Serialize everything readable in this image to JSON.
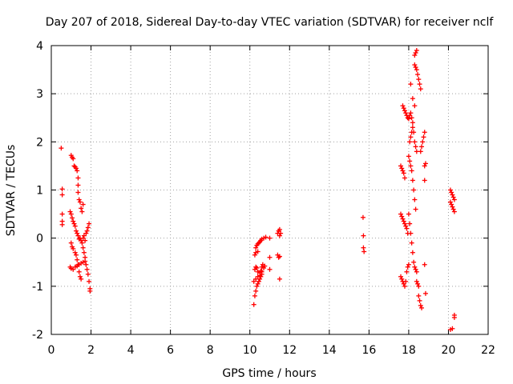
{
  "chart_data": {
    "type": "scatter",
    "title": "Day 207 of 2018, Sidereal Day-to-day VTEC variation (SDTVAR) for receiver nclf",
    "xlabel": "GPS time / hours",
    "ylabel": "SDTVAR / TECUs",
    "xlim": [
      0,
      22
    ],
    "ylim": [
      -2,
      4
    ],
    "xticks": [
      "0",
      "2",
      "4",
      "6",
      "8",
      "10",
      "12",
      "14",
      "16",
      "18",
      "20",
      "22"
    ],
    "yticks": [
      "-2",
      "-1",
      "0",
      "1",
      "2",
      "3",
      "4"
    ],
    "grid": true,
    "marker": "+",
    "color": "#ff0000",
    "series": [
      {
        "name": "SDTVAR",
        "points": [
          [
            0.5,
            1.87
          ],
          [
            0.55,
            1.02
          ],
          [
            0.55,
            0.9
          ],
          [
            0.55,
            0.5
          ],
          [
            0.55,
            0.35
          ],
          [
            0.55,
            0.28
          ],
          [
            1.0,
            1.72
          ],
          [
            1.05,
            1.68
          ],
          [
            1.1,
            1.65
          ],
          [
            1.15,
            1.5
          ],
          [
            1.2,
            1.48
          ],
          [
            1.25,
            1.45
          ],
          [
            1.3,
            1.4
          ],
          [
            1.35,
            1.25
          ],
          [
            1.35,
            1.1
          ],
          [
            1.35,
            0.95
          ],
          [
            1.4,
            0.8
          ],
          [
            1.45,
            0.75
          ],
          [
            1.5,
            0.62
          ],
          [
            1.55,
            0.55
          ],
          [
            1.6,
            0.7
          ],
          [
            0.95,
            0.55
          ],
          [
            1.0,
            0.5
          ],
          [
            1.05,
            0.42
          ],
          [
            1.1,
            0.35
          ],
          [
            1.15,
            0.3
          ],
          [
            1.2,
            0.25
          ],
          [
            1.25,
            0.15
          ],
          [
            1.3,
            0.1
          ],
          [
            1.35,
            0.05
          ],
          [
            1.4,
            -0.02
          ],
          [
            1.0,
            -0.1
          ],
          [
            1.05,
            -0.18
          ],
          [
            1.1,
            -0.22
          ],
          [
            1.2,
            -0.3
          ],
          [
            1.25,
            -0.35
          ],
          [
            1.3,
            -0.45
          ],
          [
            1.35,
            -0.55
          ],
          [
            1.4,
            -0.7
          ],
          [
            1.45,
            -0.8
          ],
          [
            1.5,
            -0.85
          ],
          [
            0.95,
            -0.6
          ],
          [
            1.0,
            -0.63
          ],
          [
            1.1,
            -0.65
          ],
          [
            1.2,
            -0.6
          ],
          [
            1.3,
            -0.58
          ],
          [
            1.4,
            -0.55
          ],
          [
            1.5,
            -0.52
          ],
          [
            1.6,
            -0.5
          ],
          [
            1.7,
            -0.48
          ],
          [
            1.45,
            0.0
          ],
          [
            1.5,
            -0.05
          ],
          [
            1.55,
            -0.1
          ],
          [
            1.6,
            0.0
          ],
          [
            1.65,
            0.05
          ],
          [
            1.7,
            -0.05
          ],
          [
            1.75,
            0.1
          ],
          [
            1.8,
            0.15
          ],
          [
            1.85,
            0.22
          ],
          [
            1.9,
            0.3
          ],
          [
            1.6,
            -0.2
          ],
          [
            1.65,
            -0.3
          ],
          [
            1.7,
            -0.4
          ],
          [
            1.75,
            -0.55
          ],
          [
            1.8,
            -0.65
          ],
          [
            1.85,
            -0.75
          ],
          [
            1.9,
            -0.9
          ],
          [
            1.95,
            -1.05
          ],
          [
            1.95,
            -1.1
          ],
          [
            10.2,
            -1.38
          ],
          [
            10.25,
            -1.2
          ],
          [
            10.3,
            -1.1
          ],
          [
            10.35,
            -1.0
          ],
          [
            10.4,
            -0.95
          ],
          [
            10.45,
            -0.9
          ],
          [
            10.5,
            -0.85
          ],
          [
            10.55,
            -0.8
          ],
          [
            10.6,
            -0.75
          ],
          [
            10.25,
            -0.65
          ],
          [
            10.3,
            -0.6
          ],
          [
            10.35,
            -0.62
          ],
          [
            10.4,
            -0.7
          ],
          [
            10.5,
            -0.72
          ],
          [
            10.55,
            -0.68
          ],
          [
            10.6,
            -0.6
          ],
          [
            10.65,
            -0.55
          ],
          [
            10.2,
            -0.9
          ],
          [
            10.3,
            -0.85
          ],
          [
            10.4,
            -0.8
          ],
          [
            10.5,
            -0.78
          ],
          [
            10.6,
            -0.7
          ],
          [
            10.7,
            -0.62
          ],
          [
            10.75,
            -0.58
          ],
          [
            10.3,
            -0.2
          ],
          [
            10.35,
            -0.15
          ],
          [
            10.4,
            -0.12
          ],
          [
            10.45,
            -0.1
          ],
          [
            10.5,
            -0.08
          ],
          [
            10.55,
            -0.05
          ],
          [
            10.6,
            -0.02
          ],
          [
            10.7,
            0.0
          ],
          [
            10.8,
            0.02
          ],
          [
            10.25,
            -0.35
          ],
          [
            10.3,
            -0.3
          ],
          [
            10.4,
            -0.28
          ],
          [
            11.0,
            -0.65
          ],
          [
            11.0,
            -0.4
          ],
          [
            11.0,
            0.0
          ],
          [
            11.4,
            -0.35
          ],
          [
            11.45,
            -0.4
          ],
          [
            11.5,
            -0.38
          ],
          [
            11.5,
            -0.85
          ],
          [
            11.4,
            0.1
          ],
          [
            11.45,
            0.15
          ],
          [
            11.5,
            0.18
          ],
          [
            11.55,
            0.1
          ],
          [
            11.5,
            0.05
          ],
          [
            15.7,
            0.43
          ],
          [
            15.72,
            0.05
          ],
          [
            15.72,
            -0.2
          ],
          [
            15.75,
            -0.28
          ],
          [
            17.6,
            1.5
          ],
          [
            17.65,
            1.45
          ],
          [
            17.7,
            1.4
          ],
          [
            17.75,
            1.35
          ],
          [
            17.8,
            1.25
          ],
          [
            17.7,
            2.75
          ],
          [
            17.75,
            2.7
          ],
          [
            17.8,
            2.65
          ],
          [
            17.85,
            2.6
          ],
          [
            17.9,
            2.55
          ],
          [
            17.95,
            2.5
          ],
          [
            18.0,
            2.48
          ],
          [
            18.05,
            2.55
          ],
          [
            18.1,
            2.6
          ],
          [
            18.15,
            2.5
          ],
          [
            18.2,
            2.4
          ],
          [
            17.6,
            0.5
          ],
          [
            17.65,
            0.45
          ],
          [
            17.7,
            0.4
          ],
          [
            17.75,
            0.35
          ],
          [
            17.8,
            0.3
          ],
          [
            17.85,
            0.25
          ],
          [
            17.9,
            0.2
          ],
          [
            17.95,
            0.1
          ],
          [
            17.6,
            -0.8
          ],
          [
            17.65,
            -0.85
          ],
          [
            17.7,
            -0.9
          ],
          [
            17.75,
            -0.95
          ],
          [
            17.8,
            -1.0
          ],
          [
            17.85,
            -0.9
          ],
          [
            17.9,
            -0.7
          ],
          [
            17.95,
            -0.6
          ],
          [
            18.0,
            -0.55
          ],
          [
            18.0,
            1.7
          ],
          [
            18.05,
            1.6
          ],
          [
            18.1,
            1.5
          ],
          [
            18.15,
            1.4
          ],
          [
            18.2,
            1.2
          ],
          [
            18.25,
            1.0
          ],
          [
            18.3,
            0.8
          ],
          [
            18.35,
            0.6
          ],
          [
            18.05,
            2.0
          ],
          [
            18.1,
            2.1
          ],
          [
            18.15,
            2.2
          ],
          [
            18.2,
            2.3
          ],
          [
            18.25,
            2.2
          ],
          [
            18.3,
            2.0
          ],
          [
            18.35,
            1.9
          ],
          [
            18.4,
            1.8
          ],
          [
            18.0,
            0.5
          ],
          [
            18.05,
            0.3
          ],
          [
            18.1,
            0.1
          ],
          [
            18.15,
            -0.1
          ],
          [
            18.2,
            -0.3
          ],
          [
            18.25,
            -0.5
          ],
          [
            18.3,
            -0.6
          ],
          [
            18.35,
            -0.65
          ],
          [
            18.4,
            -0.7
          ],
          [
            18.3,
            3.8
          ],
          [
            18.35,
            3.85
          ],
          [
            18.4,
            3.9
          ],
          [
            18.3,
            3.6
          ],
          [
            18.35,
            3.55
          ],
          [
            18.4,
            3.5
          ],
          [
            18.45,
            3.4
          ],
          [
            18.5,
            3.3
          ],
          [
            18.55,
            3.2
          ],
          [
            18.6,
            3.1
          ],
          [
            18.1,
            3.2
          ],
          [
            18.2,
            2.9
          ],
          [
            18.3,
            2.75
          ],
          [
            18.5,
            -1.2
          ],
          [
            18.55,
            -1.3
          ],
          [
            18.6,
            -1.4
          ],
          [
            18.65,
            -1.45
          ],
          [
            18.4,
            -0.9
          ],
          [
            18.45,
            -0.95
          ],
          [
            18.5,
            -1.0
          ],
          [
            18.6,
            1.8
          ],
          [
            18.65,
            1.9
          ],
          [
            18.7,
            2.0
          ],
          [
            18.75,
            2.1
          ],
          [
            18.8,
            2.2
          ],
          [
            18.8,
            1.5
          ],
          [
            18.85,
            1.55
          ],
          [
            18.8,
            1.2
          ],
          [
            18.8,
            -0.55
          ],
          [
            18.85,
            -1.15
          ],
          [
            20.1,
            1.0
          ],
          [
            20.15,
            0.95
          ],
          [
            20.2,
            0.9
          ],
          [
            20.25,
            0.85
          ],
          [
            20.3,
            0.8
          ],
          [
            20.1,
            0.75
          ],
          [
            20.15,
            0.7
          ],
          [
            20.2,
            0.65
          ],
          [
            20.25,
            0.6
          ],
          [
            20.3,
            0.55
          ],
          [
            20.1,
            -1.9
          ],
          [
            20.2,
            -1.88
          ],
          [
            20.3,
            -1.6
          ],
          [
            20.3,
            -1.65
          ]
        ]
      }
    ]
  }
}
